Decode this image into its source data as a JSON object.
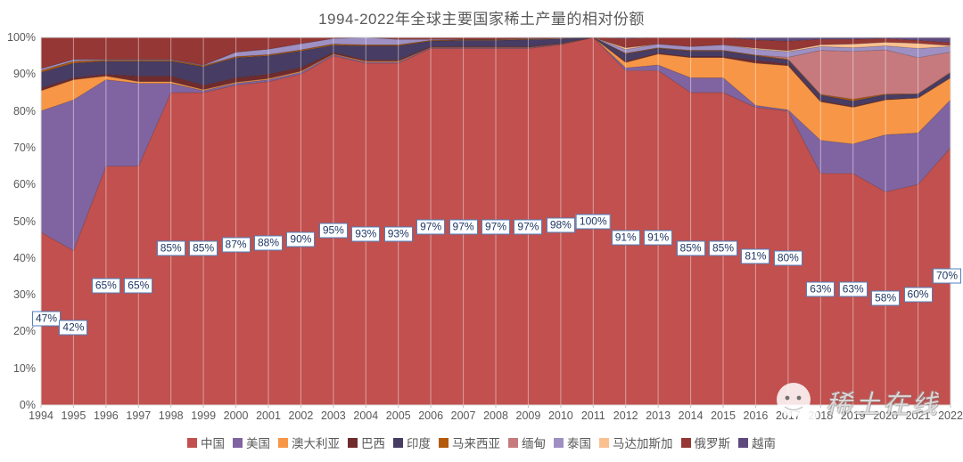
{
  "title": "1994-2022年全球主要国家稀土产量的相对份额",
  "watermark": {
    "text": "稀土在线"
  },
  "axes": {
    "yticks": [
      "0%",
      "10%",
      "20%",
      "30%",
      "40%",
      "50%",
      "60%",
      "70%",
      "80%",
      "90%",
      "100%"
    ]
  },
  "chart_data": {
    "type": "area",
    "stacked": "percent",
    "title": "1994-2022年全球主要国家稀土产量的相对份额",
    "x": [
      1994,
      1995,
      1996,
      1997,
      1998,
      1999,
      2000,
      2001,
      2002,
      2003,
      2004,
      2005,
      2006,
      2007,
      2008,
      2009,
      2010,
      2011,
      2012,
      2013,
      2014,
      2015,
      2016,
      2017,
      2018,
      2019,
      2020,
      2021,
      2022
    ],
    "ylim": [
      0,
      100
    ],
    "legend_position": "bottom",
    "gridlines": "vertical",
    "data_labels": {
      "series": "中国",
      "format": "{value}%"
    },
    "series": [
      {
        "id": "china",
        "name": "中国",
        "color": "#C1504E",
        "values": [
          47,
          42,
          65,
          65,
          85,
          85,
          87,
          88,
          90,
          95,
          93,
          93,
          97,
          97,
          97,
          97,
          98,
          100,
          91,
          91,
          85,
          85,
          81,
          80,
          63,
          63,
          58,
          60,
          70
        ]
      },
      {
        "id": "usa",
        "name": "美国",
        "color": "#8064A2",
        "values": [
          33,
          41,
          23.5,
          22.5,
          2.5,
          0.5,
          0.5,
          0.5,
          0.5,
          0.3,
          0.3,
          0.3,
          0.2,
          0.2,
          0.2,
          0.2,
          0.1,
          0,
          0.7,
          1.5,
          4,
          4,
          0.5,
          0.3,
          9,
          8,
          15.5,
          14,
          13
        ]
      },
      {
        "id": "australia",
        "name": "澳大利亚",
        "color": "#F79646",
        "values": [
          5.5,
          5.5,
          1,
          0.5,
          0.5,
          0.3,
          0.3,
          0.3,
          0.3,
          0.2,
          0.2,
          0.2,
          0.1,
          0.1,
          0.1,
          0.1,
          0.1,
          0,
          1.5,
          3,
          5.5,
          5.5,
          11.5,
          12,
          10.5,
          10,
          9.5,
          9.5,
          6
        ]
      },
      {
        "id": "brazil",
        "name": "巴西",
        "color": "#702B2D",
        "values": [
          0.7,
          0.5,
          0.5,
          1.5,
          1.5,
          1.2,
          1.2,
          1.2,
          1,
          0.4,
          0.4,
          0.4,
          0.2,
          0.2,
          0.2,
          0.2,
          0.2,
          0,
          0.3,
          0.3,
          0.3,
          0.3,
          0.8,
          0.5,
          0.3,
          0.3,
          0.2,
          0.1,
          0.1
        ]
      },
      {
        "id": "india",
        "name": "印度",
        "color": "#473C63",
        "values": [
          4.3,
          4,
          3.5,
          4,
          4,
          5,
          5.5,
          5,
          4.5,
          2,
          3.8,
          3.8,
          1.5,
          1.7,
          1.7,
          1.9,
          1.2,
          0,
          2,
          1.2,
          1.5,
          1.5,
          1.2,
          1.1,
          1.5,
          1.4,
          1.2,
          1,
          1.3
        ]
      },
      {
        "id": "malaysia",
        "name": "马来西亚",
        "color": "#B35A0B",
        "values": [
          0.5,
          0.5,
          0.3,
          0.3,
          0.3,
          0.3,
          0.3,
          0.3,
          0.3,
          0.3,
          0.3,
          0.3,
          0.2,
          0.2,
          0.2,
          0.2,
          0.1,
          0,
          0.2,
          0.2,
          0.2,
          0.2,
          0.2,
          0.2,
          0.2,
          0.5,
          0.2,
          0.1,
          0.1
        ]
      },
      {
        "id": "myanmar",
        "name": "缅甸",
        "color": "#C67A7D",
        "values": [
          0,
          0,
          0,
          0,
          0,
          0,
          0,
          0,
          0,
          0,
          0,
          0,
          0,
          0,
          0,
          0,
          0,
          0,
          0,
          0,
          0,
          0,
          0,
          0.5,
          12,
          13,
          12,
          9.8,
          5.5
        ]
      },
      {
        "id": "thailand",
        "name": "泰国",
        "color": "#9E90C3",
        "values": [
          0.5,
          0.5,
          0.2,
          0.2,
          0.2,
          0.2,
          1.2,
          1.5,
          1.7,
          1.5,
          2,
          1.5,
          0.3,
          0.1,
          0.1,
          0.1,
          0.1,
          0,
          1,
          1,
          1,
          1.5,
          1.6,
          1.5,
          1,
          1,
          1.1,
          2.5,
          1.5
        ]
      },
      {
        "id": "madagascar",
        "name": "马达加斯加",
        "color": "#FAC090",
        "values": [
          0,
          0,
          0,
          0,
          0,
          0,
          0,
          0,
          0,
          0,
          0,
          0,
          0,
          0,
          0,
          0,
          0,
          0,
          0.5,
          0,
          0,
          0,
          0.3,
          0.3,
          0.5,
          1,
          1,
          1.4,
          0.3
        ]
      },
      {
        "id": "russia",
        "name": "俄罗斯",
        "color": "#953735",
        "values": [
          8.5,
          6,
          6,
          6,
          6,
          7.5,
          4,
          3.2,
          1.7,
          0.3,
          0,
          0.5,
          0.5,
          0.5,
          0.5,
          0.3,
          0.2,
          0,
          2.5,
          1.8,
          2.5,
          2,
          2.2,
          2.6,
          1.5,
          1.3,
          1,
          0.8,
          0.8
        ]
      },
      {
        "id": "vietnam",
        "name": "越南",
        "color": "#5E4A7D",
        "values": [
          0,
          0,
          0,
          0,
          0,
          0,
          0,
          0,
          0,
          0,
          0,
          0,
          0,
          0,
          0,
          0,
          0,
          0,
          0.3,
          0,
          0,
          0,
          0.7,
          1,
          0.5,
          0.5,
          0.3,
          0.8,
          1.4
        ]
      }
    ]
  }
}
